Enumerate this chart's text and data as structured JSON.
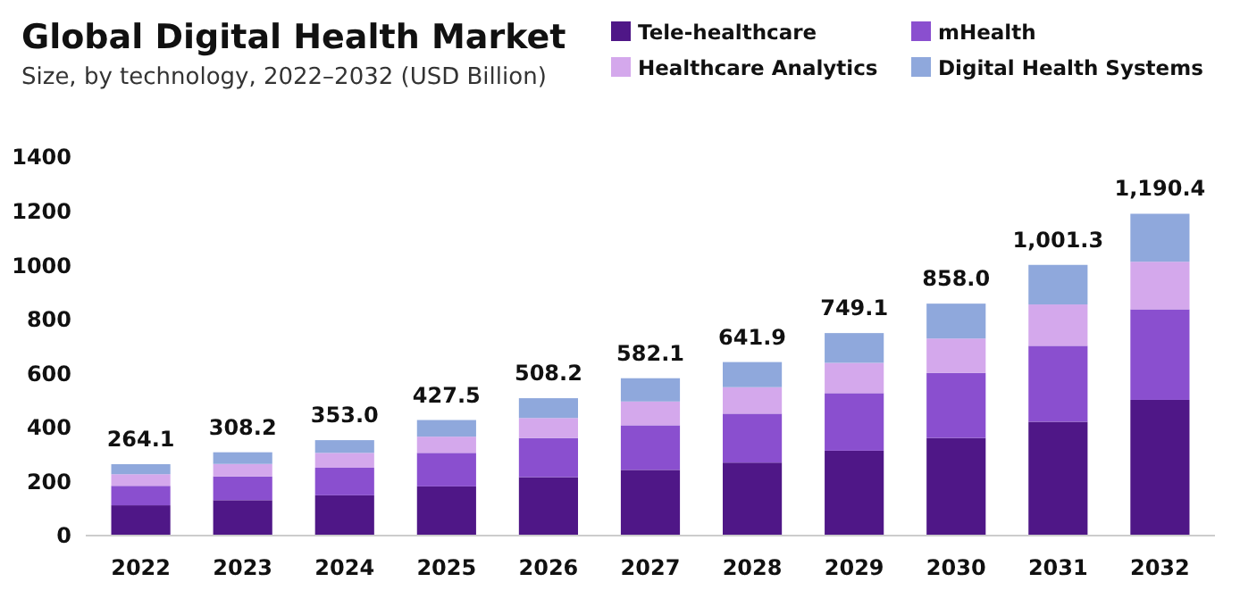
{
  "chart_data": {
    "type": "bar",
    "title": "Global Digital Health Market",
    "subtitle": "Size, by technology, 2022–2032 (USD Billion)",
    "categories": [
      "2022",
      "2023",
      "2024",
      "2025",
      "2026",
      "2027",
      "2028",
      "2029",
      "2030",
      "2031",
      "2032"
    ],
    "stacked": true,
    "legend": "top right",
    "grid": false,
    "ylim": [
      0,
      1400
    ],
    "yticks": [
      0,
      200,
      400,
      600,
      800,
      1000,
      1200,
      1400
    ],
    "series": [
      {
        "name": "Tele-healthcare",
        "color": "#4f1787",
        "values": [
          112,
          131,
          149,
          182,
          216,
          243,
          270,
          314,
          361,
          421,
          502
        ]
      },
      {
        "name": "mHealth",
        "color": "#8a4fcf",
        "values": [
          72,
          88,
          102,
          124,
          145,
          165,
          181,
          213,
          241,
          281,
          335
        ]
      },
      {
        "name": "Healthcare Analytics",
        "color": "#d4a8ec",
        "values": [
          43,
          46,
          55,
          60,
          74,
          88,
          98,
          112,
          127,
          153,
          176
        ]
      },
      {
        "name": "Digital Health Systems",
        "color": "#8fa8dc",
        "values": [
          37.1,
          43.2,
          47,
          61.5,
          73.2,
          86.1,
          92.9,
          110.1,
          129,
          146.3,
          177.4
        ]
      }
    ],
    "totals": [
      "264.1",
      "308.2",
      "353.0",
      "427.5",
      "508.2",
      "582.1",
      "641.9",
      "749.1",
      "858.0",
      "1,001.3",
      "1,190.4"
    ]
  }
}
